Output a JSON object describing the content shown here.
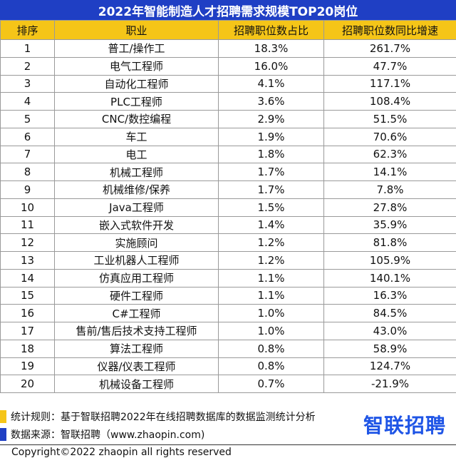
{
  "colors": {
    "title_bg": "#1f3fc4",
    "header_bg": "#f5c518",
    "grid": "#9a9a9a",
    "rule_swatch": "#f5c518",
    "source_swatch": "#1f3fc4",
    "logo": "#1f55e6"
  },
  "chart_data": {
    "type": "table",
    "title": "2022年智能制造人才招聘需求规模TOP20岗位",
    "columns": [
      "排序",
      "职业",
      "招聘职位数占比",
      "招聘职位数同比增速"
    ],
    "rows": [
      {
        "rank": "1",
        "job": "普工/操作工",
        "share": "18.3%",
        "growth": "261.7%"
      },
      {
        "rank": "2",
        "job": "电气工程师",
        "share": "16.0%",
        "growth": "47.7%"
      },
      {
        "rank": "3",
        "job": "自动化工程师",
        "share": "4.1%",
        "growth": "117.1%"
      },
      {
        "rank": "4",
        "job": "PLC工程师",
        "share": "3.6%",
        "growth": "108.4%"
      },
      {
        "rank": "5",
        "job": "CNC/数控编程",
        "share": "2.9%",
        "growth": "51.5%"
      },
      {
        "rank": "6",
        "job": "车工",
        "share": "1.9%",
        "growth": "70.6%"
      },
      {
        "rank": "7",
        "job": "电工",
        "share": "1.8%",
        "growth": "62.3%"
      },
      {
        "rank": "8",
        "job": "机械工程师",
        "share": "1.7%",
        "growth": "14.1%"
      },
      {
        "rank": "9",
        "job": "机械维修/保养",
        "share": "1.7%",
        "growth": "7.8%"
      },
      {
        "rank": "10",
        "job": "Java工程师",
        "share": "1.5%",
        "growth": "27.8%"
      },
      {
        "rank": "11",
        "job": "嵌入式软件开发",
        "share": "1.4%",
        "growth": "35.9%"
      },
      {
        "rank": "12",
        "job": "实施顾问",
        "share": "1.2%",
        "growth": "81.8%"
      },
      {
        "rank": "13",
        "job": "工业机器人工程师",
        "share": "1.2%",
        "growth": "105.9%"
      },
      {
        "rank": "14",
        "job": "仿真应用工程师",
        "share": "1.1%",
        "growth": "140.1%"
      },
      {
        "rank": "15",
        "job": "硬件工程师",
        "share": "1.1%",
        "growth": "16.3%"
      },
      {
        "rank": "16",
        "job": "C#工程师",
        "share": "1.0%",
        "growth": "84.5%"
      },
      {
        "rank": "17",
        "job": "售前/售后技术支持工程师",
        "share": "1.0%",
        "growth": "43.0%"
      },
      {
        "rank": "18",
        "job": "算法工程师",
        "share": "0.8%",
        "growth": "58.9%"
      },
      {
        "rank": "19",
        "job": "仪器/仪表工程师",
        "share": "0.8%",
        "growth": "124.7%"
      },
      {
        "rank": "20",
        "job": "机械设备工程师",
        "share": "0.7%",
        "growth": "-21.9%"
      }
    ]
  },
  "footer": {
    "rule": "统计规则：基于智联招聘2022年在线招聘数据库的数据监测统计分析",
    "source": "数据来源：智联招聘（www.zhaopin.com)",
    "logo_text": "智联招聘",
    "copyright": "Copyright©2022 zhaopin all rights reserved"
  }
}
